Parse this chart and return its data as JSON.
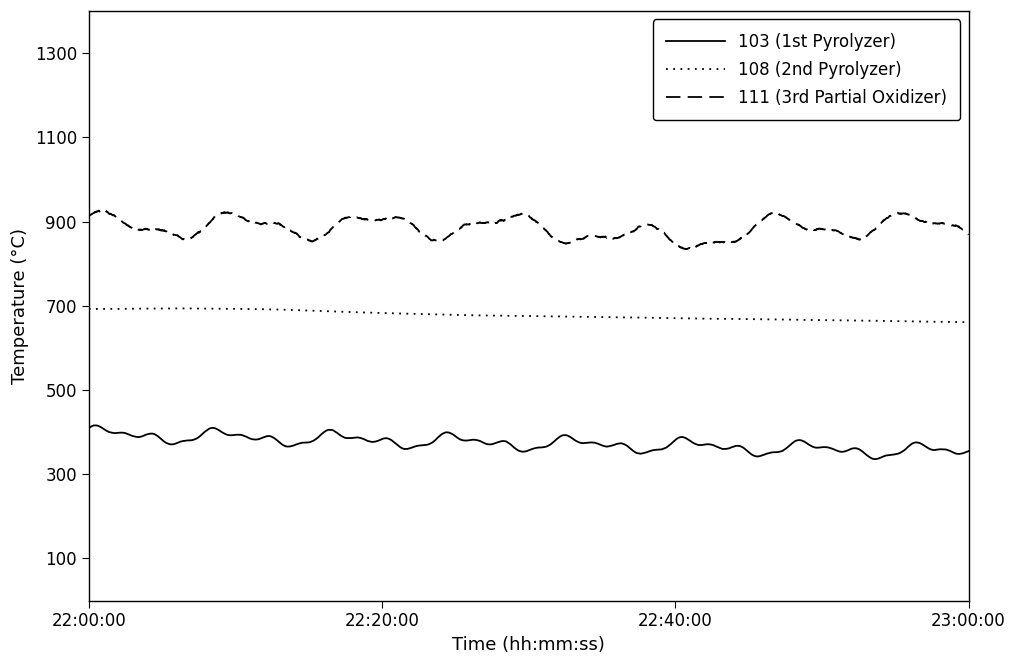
{
  "title": "",
  "xlabel": "Time (hh:mm:ss)",
  "ylabel": "Temperature (°C)",
  "ylim": [
    0,
    1400
  ],
  "yticks": [
    100,
    300,
    500,
    700,
    900,
    1100,
    1300
  ],
  "time_start_sec": 79200,
  "time_end_sec": 82800,
  "xtick_positions_sec": [
    79200,
    80400,
    81600,
    82800
  ],
  "xtick_labels": [
    "22:00:00",
    "22:20:00",
    "22:40:00",
    "23:00:00"
  ],
  "n_points": 3600,
  "line1_label": "103 (1st Pyrolyzer)",
  "line1_base": 395,
  "line1_color": "#000000",
  "line2_label": "108 (2nd Pyrolyzer)",
  "line2_base": 690,
  "line2_color": "#000000",
  "line3_label": "111 (3rd Partial Oxidizer)",
  "line3_base": 890,
  "line3_color": "#000000",
  "background_color": "#ffffff",
  "legend_loc": "upper right",
  "font_size": 13,
  "tick_font_size": 12,
  "linewidth": 1.3,
  "dot_dash": [
    1,
    3
  ],
  "dash_pattern": [
    10,
    5
  ]
}
